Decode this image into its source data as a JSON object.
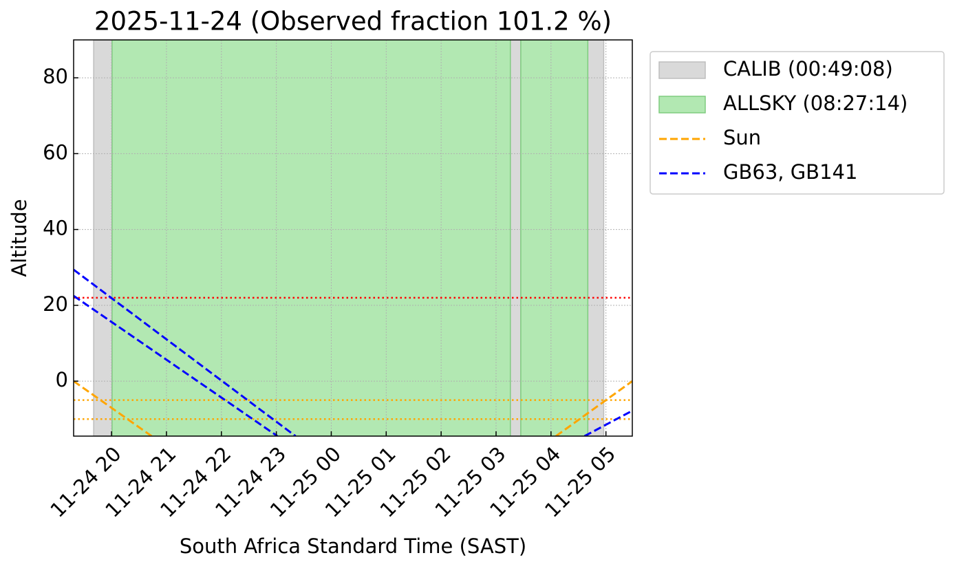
{
  "chart_data": {
    "type": "line",
    "title": "2025-11-24 (Observed fraction 101.2 %)",
    "xlabel": "South Africa Standard Time (SAST)",
    "ylabel": "Altitude",
    "xlim": [
      19.31,
      29.48
    ],
    "ylim": [
      -14.5,
      90
    ],
    "xticks": [
      {
        "value": 20,
        "label": "11-24 20"
      },
      {
        "value": 21,
        "label": "11-24 21"
      },
      {
        "value": 22,
        "label": "11-24 22"
      },
      {
        "value": 23,
        "label": "11-24 23"
      },
      {
        "value": 24,
        "label": "11-25 00"
      },
      {
        "value": 25,
        "label": "11-25 01"
      },
      {
        "value": 26,
        "label": "11-25 02"
      },
      {
        "value": 27,
        "label": "11-25 03"
      },
      {
        "value": 28,
        "label": "11-25 04"
      },
      {
        "value": 29,
        "label": "11-25 05"
      }
    ],
    "yticks": [
      0,
      20,
      40,
      60,
      80
    ],
    "grid": true,
    "legend": "outside-upper-right",
    "spans": [
      {
        "name": "CALIB (00:49:08)",
        "color": "#d9d9d9",
        "edge": "#bdbdbd",
        "ranges": [
          [
            19.675,
            20.01
          ],
          [
            27.26,
            27.45
          ],
          [
            28.67,
            28.96
          ]
        ]
      },
      {
        "name": "ALLSKY (08:27:14)",
        "color": "#b2e8b2",
        "edge": "#7fcc7f",
        "ranges": [
          [
            20.01,
            27.26
          ],
          [
            27.45,
            28.67
          ]
        ]
      }
    ],
    "series": [
      {
        "name": "Sun",
        "color": "orange",
        "lines": [
          {
            "x": [
              19.31,
              20.73,
              null,
              28.09,
              29.48
            ],
            "y": [
              0,
              -14.5,
              null,
              -14.5,
              0
            ]
          }
        ]
      },
      {
        "name": "GB63, GB141",
        "color": "blue",
        "lines": [
          {
            "x": [
              19.31,
              23.35,
              null,
              28.61,
              29.48
            ],
            "y": [
              29.4,
              -14.5,
              null,
              -14.5,
              -7.8
            ]
          },
          {
            "x": [
              19.31,
              23.02
            ],
            "y": [
              22.5,
              -14.5
            ]
          }
        ]
      }
    ],
    "hlines": [
      {
        "value": 22,
        "color": "red"
      },
      {
        "value": -5,
        "color": "orange"
      },
      {
        "value": -10,
        "color": "orange"
      }
    ]
  }
}
